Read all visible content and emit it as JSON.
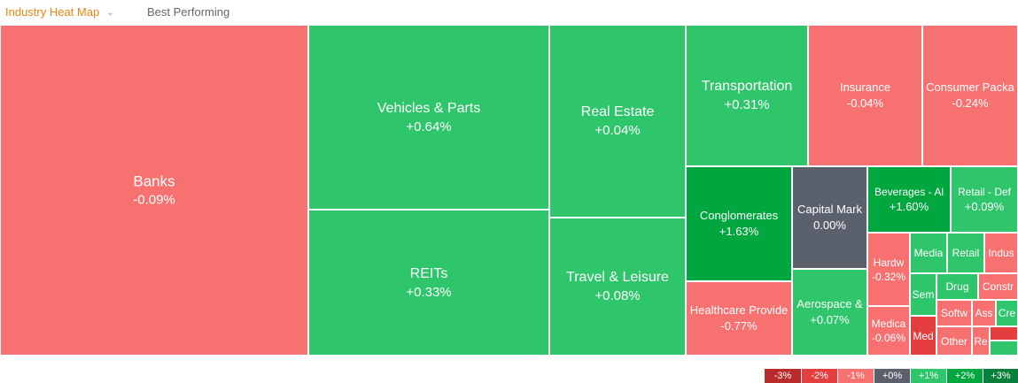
{
  "tabs": [
    {
      "label": "Industry Heat Map",
      "active": true
    },
    {
      "label": "Best Performing",
      "active": false
    }
  ],
  "colors": {
    "neg": "#f87171",
    "neg_strong": "#e53e3e",
    "neg_mid": "#ef5b5b",
    "pos": "#2fc56a",
    "pos_strong": "#00a63e",
    "flat": "#5b616c"
  },
  "sectors": [
    {
      "name": "Banks",
      "change": "-0.09%"
    },
    {
      "name": "Vehicles & Parts",
      "change": "+0.64%"
    },
    {
      "name": "REITs",
      "change": "+0.33%"
    },
    {
      "name": "Real Estate",
      "change": "+0.04%"
    },
    {
      "name": "Travel & Leisure",
      "change": "+0.08%"
    },
    {
      "name": "Transportation",
      "change": "+0.31%"
    },
    {
      "name": "Insurance",
      "change": "-0.04%"
    },
    {
      "name": "Consumer Packa",
      "change": "-0.24%"
    },
    {
      "name": "Conglomerates",
      "change": "+1.63%"
    },
    {
      "name": "Capital Mark",
      "change": "0.00%"
    },
    {
      "name": "Beverages - Al",
      "change": "+1.60%"
    },
    {
      "name": "Retail - Def",
      "change": "+0.09%"
    },
    {
      "name": "Healthcare Provide",
      "change": "-0.77%"
    },
    {
      "name": "Aerospace &",
      "change": "+0.07%"
    },
    {
      "name": "Hardw",
      "change": "-0.32%"
    },
    {
      "name": "Medica",
      "change": "-0.06%"
    },
    {
      "name": "Media",
      "change": ""
    },
    {
      "name": "Retail",
      "change": ""
    },
    {
      "name": "Indus",
      "change": ""
    },
    {
      "name": "Sem",
      "change": ""
    },
    {
      "name": "Drug",
      "change": ""
    },
    {
      "name": "Constr",
      "change": ""
    },
    {
      "name": "Softw",
      "change": ""
    },
    {
      "name": "Ass",
      "change": ""
    },
    {
      "name": "Cre",
      "change": ""
    },
    {
      "name": "Med",
      "change": ""
    },
    {
      "name": "Other",
      "change": ""
    },
    {
      "name": "Re",
      "change": ""
    },
    {
      "name": "",
      "change": ""
    },
    {
      "name": "",
      "change": ""
    }
  ],
  "legend": [
    "-3%",
    "-2%",
    "-1%",
    "+0%",
    "+1%",
    "+2%",
    "+3%"
  ]
}
